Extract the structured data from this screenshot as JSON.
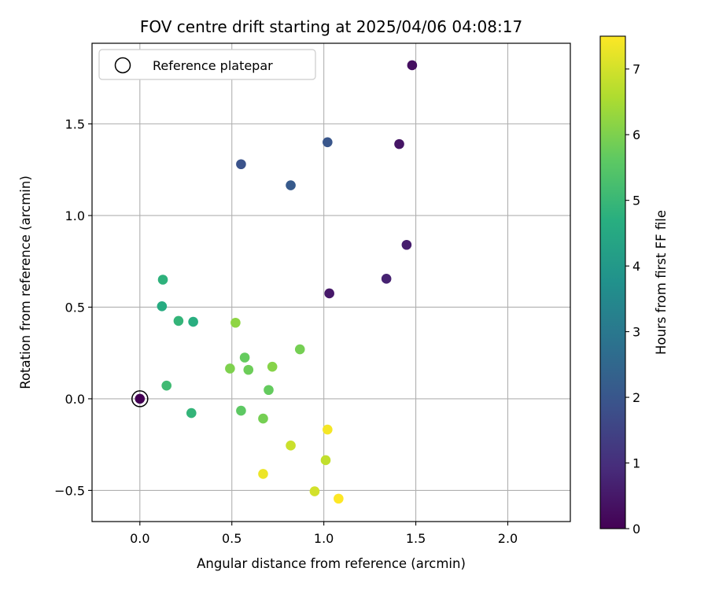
{
  "chart_data": {
    "type": "scatter",
    "title": "FOV centre drift starting at 2025/04/06 04:08:17",
    "xlabel": "Angular distance from reference (arcmin)",
    "ylabel": "Rotation from reference (arcmin)",
    "xlim": [
      -0.26,
      2.34
    ],
    "ylim": [
      -0.67,
      1.94
    ],
    "xticks": [
      0.0,
      0.5,
      1.0,
      1.5,
      2.0
    ],
    "xtick_labels": [
      "0.0",
      "0.5",
      "1.0",
      "1.5",
      "2.0"
    ],
    "yticks": [
      -0.5,
      0.0,
      0.5,
      1.0,
      1.5
    ],
    "ytick_labels": [
      "−0.5",
      "0.0",
      "0.5",
      "1.0",
      "1.5"
    ],
    "grid": true,
    "legend": {
      "position": "top-left",
      "entries": [
        "Reference platepar"
      ]
    },
    "colorbar": {
      "label": "Hours from first FF file",
      "colormap": "viridis",
      "range": [
        0,
        7.5
      ],
      "ticks": [
        0,
        1,
        2,
        3,
        4,
        5,
        6,
        7
      ],
      "tick_labels": [
        "0",
        "1",
        "2",
        "3",
        "4",
        "5",
        "6",
        "7"
      ]
    },
    "reference_point": {
      "x": 0.0,
      "y": 0.0
    },
    "points": [
      {
        "x": 0.0,
        "y": 0.0,
        "hours": 0.0
      },
      {
        "x": 1.48,
        "y": 1.82,
        "hours": 0.3
      },
      {
        "x": 1.41,
        "y": 1.39,
        "hours": 0.4
      },
      {
        "x": 1.45,
        "y": 0.84,
        "hours": 0.6
      },
      {
        "x": 1.34,
        "y": 0.655,
        "hours": 0.7
      },
      {
        "x": 1.03,
        "y": 0.575,
        "hours": 0.5
      },
      {
        "x": 1.02,
        "y": 1.4,
        "hours": 2.0
      },
      {
        "x": 0.55,
        "y": 1.28,
        "hours": 1.9
      },
      {
        "x": 0.82,
        "y": 1.165,
        "hours": 2.1
      },
      {
        "x": 0.125,
        "y": 0.65,
        "hours": 4.8
      },
      {
        "x": 0.12,
        "y": 0.505,
        "hours": 4.6
      },
      {
        "x": 0.21,
        "y": 0.425,
        "hours": 4.9
      },
      {
        "x": 0.29,
        "y": 0.42,
        "hours": 4.7
      },
      {
        "x": 0.145,
        "y": 0.072,
        "hours": 5.1
      },
      {
        "x": 0.28,
        "y": -0.078,
        "hours": 4.9
      },
      {
        "x": 0.52,
        "y": 0.415,
        "hours": 6.2
      },
      {
        "x": 0.87,
        "y": 0.27,
        "hours": 5.9
      },
      {
        "x": 0.57,
        "y": 0.225,
        "hours": 5.7
      },
      {
        "x": 0.72,
        "y": 0.175,
        "hours": 6.1
      },
      {
        "x": 0.49,
        "y": 0.165,
        "hours": 6.0
      },
      {
        "x": 0.59,
        "y": 0.158,
        "hours": 5.8
      },
      {
        "x": 0.7,
        "y": 0.048,
        "hours": 5.7
      },
      {
        "x": 0.55,
        "y": -0.065,
        "hours": 5.6
      },
      {
        "x": 0.67,
        "y": -0.108,
        "hours": 5.9
      },
      {
        "x": 1.02,
        "y": -0.168,
        "hours": 7.4
      },
      {
        "x": 0.82,
        "y": -0.255,
        "hours": 6.9
      },
      {
        "x": 1.01,
        "y": -0.335,
        "hours": 6.8
      },
      {
        "x": 0.67,
        "y": -0.41,
        "hours": 7.3
      },
      {
        "x": 0.95,
        "y": -0.505,
        "hours": 7.0
      },
      {
        "x": 1.08,
        "y": -0.545,
        "hours": 7.5
      }
    ]
  }
}
